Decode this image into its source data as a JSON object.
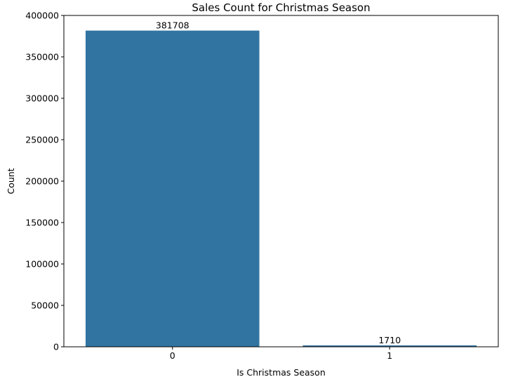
{
  "chart_data": {
    "type": "bar",
    "title": "Sales Count for Christmas Season",
    "xlabel": "Is Christmas Season",
    "ylabel": "Count",
    "categories": [
      "0",
      "1"
    ],
    "values": [
      381708,
      1710
    ],
    "data_labels": [
      "381708",
      "1710"
    ],
    "ylim": [
      0,
      400000
    ],
    "yticks": [
      0,
      50000,
      100000,
      150000,
      200000,
      250000,
      300000,
      350000,
      400000
    ],
    "ytick_labels": [
      "0",
      "50000",
      "100000",
      "150000",
      "200000",
      "250000",
      "300000",
      "350000",
      "400000"
    ],
    "bar_color": "#3274a1",
    "grid": false,
    "legend": "none"
  }
}
